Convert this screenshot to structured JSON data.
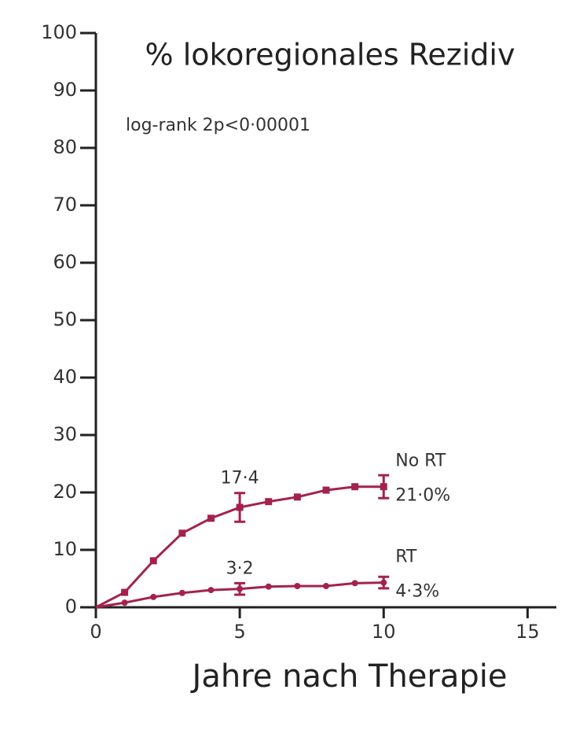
{
  "chart_data": {
    "type": "line",
    "title": "% lokoregionales Rezidiv",
    "annotation": "log-rank 2p<0·00001",
    "xlabel": "Jahre nach Therapie",
    "x": [
      0,
      1,
      2,
      3,
      4,
      5,
      6,
      7,
      8,
      9,
      10
    ],
    "series": [
      {
        "name": "No RT",
        "color": "#a3224d",
        "marker": "square",
        "values": [
          0,
          2.6,
          8.1,
          12.9,
          15.5,
          17.4,
          18.4,
          19.2,
          20.4,
          21.0,
          21.0
        ],
        "errors": [
          null,
          null,
          null,
          null,
          null,
          2.5,
          null,
          null,
          null,
          null,
          2.0
        ],
        "value_labels": [
          null,
          null,
          null,
          null,
          null,
          "17·4",
          null,
          null,
          null,
          null,
          "21·0%"
        ]
      },
      {
        "name": "RT",
        "color": "#a3224d",
        "marker": "circle",
        "values": [
          0,
          0.8,
          1.8,
          2.5,
          3.0,
          3.2,
          3.6,
          3.7,
          3.7,
          4.2,
          4.3
        ],
        "errors": [
          null,
          null,
          null,
          null,
          null,
          1.0,
          null,
          null,
          null,
          null,
          1.0
        ],
        "value_labels": [
          null,
          null,
          null,
          null,
          null,
          "3·2",
          null,
          null,
          null,
          null,
          "4·3%"
        ]
      }
    ],
    "xlim": [
      0,
      16
    ],
    "xticks": [
      0,
      5,
      10,
      15
    ],
    "ylim": [
      0,
      100
    ],
    "yticks": [
      0,
      10,
      20,
      30,
      40,
      50,
      60,
      70,
      80,
      90,
      100
    ]
  }
}
